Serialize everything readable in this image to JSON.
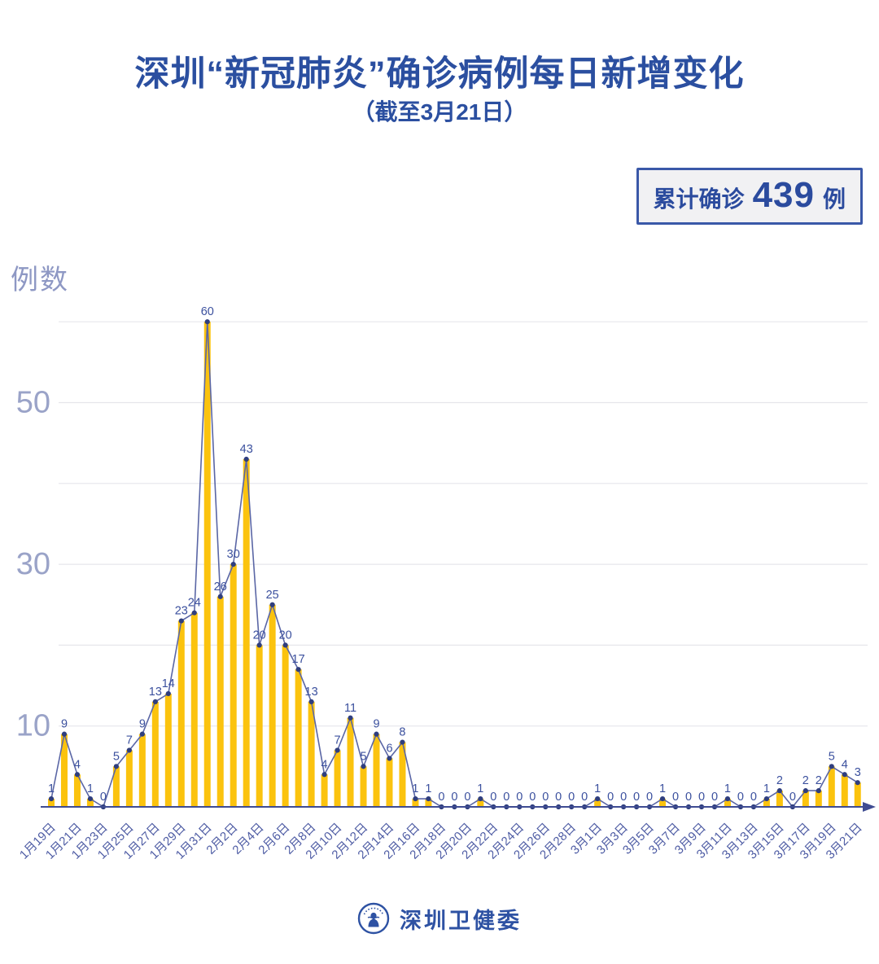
{
  "header": {
    "title": "深圳“新冠肺炎”确诊病例每日新增变化",
    "subtitle": "（截至3月21日）"
  },
  "summary_badge": {
    "prefix": "累计确诊",
    "value": "439",
    "unit": "例"
  },
  "chart_data": {
    "type": "bar",
    "overlay_line": true,
    "title": "深圳“新冠肺炎”确诊病例每日新增变化",
    "xlabel": "",
    "ylabel": "例数",
    "ylim": [
      0,
      60
    ],
    "gridline_values": [
      10,
      20,
      30,
      40,
      50,
      60
    ],
    "ytick_labels": [
      10,
      30,
      50
    ],
    "grid": "horizontal",
    "legend": "none",
    "x": [
      "1月19日",
      "1月20日",
      "1月21日",
      "1月22日",
      "1月23日",
      "1月24日",
      "1月25日",
      "1月26日",
      "1月27日",
      "1月28日",
      "1月29日",
      "1月30日",
      "1月31日",
      "2月1日",
      "2月2日",
      "2月3日",
      "2月4日",
      "2月5日",
      "2月6日",
      "2月7日",
      "2月8日",
      "2月9日",
      "2月10日",
      "2月11日",
      "2月12日",
      "2月13日",
      "2月14日",
      "2月15日",
      "2月16日",
      "2月17日",
      "2月18日",
      "2月19日",
      "2月20日",
      "2月21日",
      "2月22日",
      "2月23日",
      "2月24日",
      "2月25日",
      "2月26日",
      "2月27日",
      "2月28日",
      "2月29日",
      "3月1日",
      "3月2日",
      "3月3日",
      "3月4日",
      "3月5日",
      "3月6日",
      "3月7日",
      "3月8日",
      "3月9日",
      "3月10日",
      "3月11日",
      "3月12日",
      "3月13日",
      "3月14日",
      "3月15日",
      "3月16日",
      "3月17日",
      "3月18日",
      "3月19日",
      "3月20日",
      "3月21日"
    ],
    "values": [
      1,
      9,
      4,
      1,
      0,
      5,
      7,
      9,
      13,
      14,
      23,
      24,
      60,
      26,
      30,
      43,
      20,
      25,
      20,
      17,
      13,
      4,
      7,
      11,
      5,
      9,
      6,
      8,
      1,
      1,
      0,
      0,
      0,
      1,
      0,
      0,
      0,
      0,
      0,
      0,
      0,
      0,
      1,
      0,
      0,
      0,
      0,
      1,
      0,
      0,
      0,
      0,
      1,
      0,
      0,
      1,
      2,
      0,
      2,
      2,
      5,
      4,
      3
    ],
    "x_tick_labels": [
      "1月19日",
      "1月21日",
      "1月23日",
      "1月25日",
      "1月27日",
      "1月29日",
      "1月31日",
      "2月2日",
      "2月4日",
      "2月6日",
      "2月8日",
      "2月10日",
      "2月12日",
      "2月14日",
      "2月16日",
      "2月18日",
      "2月20日",
      "2月22日",
      "2月24日",
      "2月26日",
      "2月28日",
      "3月1日",
      "3月3日",
      "3月5日",
      "3月7日",
      "3月9日",
      "3月11日",
      "3月13日",
      "3月15日",
      "3月17日",
      "3月19日",
      "3月21日"
    ],
    "x_tick_every": 2,
    "colors": {
      "bar": "#FBC30E",
      "line": "#5A66A5",
      "marker": "#2F3E7E",
      "value_label": "#3B509E",
      "x_tick_label": "#4E5CA4",
      "y_tick_label": "#9AA3C8",
      "gridline": "#E6E6EB",
      "axis": "#3F4C92",
      "title": "#2B4FA0"
    }
  },
  "footer": {
    "org": "深圳卫健委",
    "logo": "shenzhen-health-commission-emblem"
  }
}
